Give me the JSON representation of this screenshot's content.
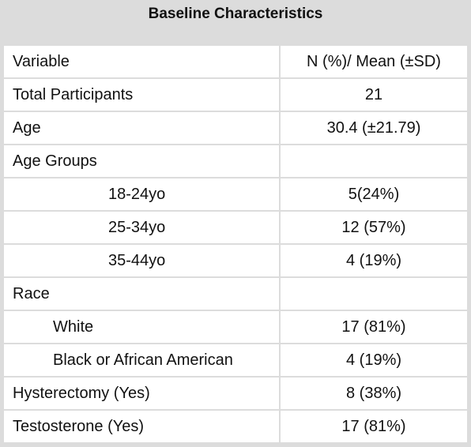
{
  "title": "Baseline Characteristics",
  "table": {
    "header": [
      "Variable",
      "N (%)/ Mean (±SD)"
    ],
    "rows": [
      [
        "Total Participants",
        "21"
      ],
      [
        "Age",
        "30.4 (±21.79)"
      ],
      [
        "Age Groups",
        ""
      ],
      [
        "18-24yo",
        "5(24%)"
      ],
      [
        "25-34yo",
        "12 (57%)"
      ],
      [
        "35-44yo",
        "4 (19%)"
      ],
      [
        "Race",
        ""
      ],
      [
        "White",
        "17 (81%)"
      ],
      [
        "Black or African American",
        "4 (19%)"
      ],
      [
        "Hysterectomy (Yes)",
        "8 (38%)"
      ],
      [
        "Testosterone (Yes)",
        "17 (81%)"
      ]
    ]
  }
}
